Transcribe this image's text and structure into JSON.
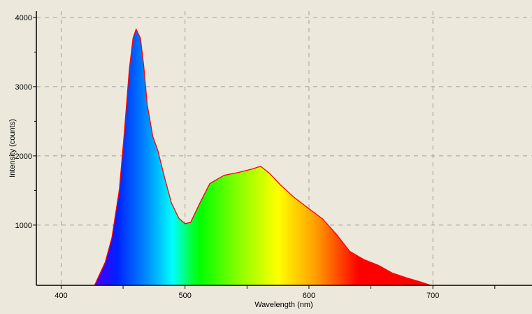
{
  "chart_data": {
    "type": "area",
    "title": "",
    "xlabel": "Wavelength (nm)",
    "ylabel": "Intensity (counts)",
    "xlim": [
      380,
      780
    ],
    "ylim": [
      130,
      4090
    ],
    "grid": true,
    "x_ticks": [
      400,
      500,
      600,
      700
    ],
    "x_minor_ticks": [
      450,
      550,
      650,
      750
    ],
    "y_ticks": [
      1000,
      2000,
      3000,
      4000
    ],
    "y_minor_ticks": [
      1500,
      2500,
      3500
    ],
    "line_color": "#ff0000",
    "fill": "visible-spectrum gradient",
    "spectrum_colors": [
      {
        "nm": 430,
        "color": "#4000ff"
      },
      {
        "nm": 445,
        "color": "#0020ff"
      },
      {
        "nm": 470,
        "color": "#0090ff"
      },
      {
        "nm": 490,
        "color": "#00ffff"
      },
      {
        "nm": 505,
        "color": "#00ff40"
      },
      {
        "nm": 512,
        "color": "#00ff00"
      },
      {
        "nm": 545,
        "color": "#90ff00"
      },
      {
        "nm": 575,
        "color": "#ffff00"
      },
      {
        "nm": 605,
        "color": "#ffa000"
      },
      {
        "nm": 640,
        "color": "#ff0000"
      },
      {
        "nm": 700,
        "color": "#ff0000"
      }
    ],
    "series": [
      {
        "x": [
          427,
          435.6,
          441,
          447,
          451,
          455,
          458,
          460.5,
          464,
          466.7,
          469.5,
          474,
          478,
          483.6,
          489,
          495,
          500,
          504.5,
          512,
          520,
          531.6,
          543,
          554,
          561,
          568,
          577,
          588,
          599,
          611,
          622,
          633,
          644.6,
          656,
          667,
          678.5,
          690,
          698
        ],
        "y": [
          131,
          465,
          820,
          1520,
          2330,
          3240,
          3700,
          3830,
          3700,
          3290,
          2740,
          2280,
          2080,
          1680,
          1320,
          1100,
          1020,
          1040,
          1320,
          1600,
          1720,
          1760,
          1810,
          1850,
          1750,
          1580,
          1400,
          1250,
          1090,
          870,
          620,
          500,
          420,
          310,
          240,
          180,
          131
        ]
      }
    ]
  }
}
